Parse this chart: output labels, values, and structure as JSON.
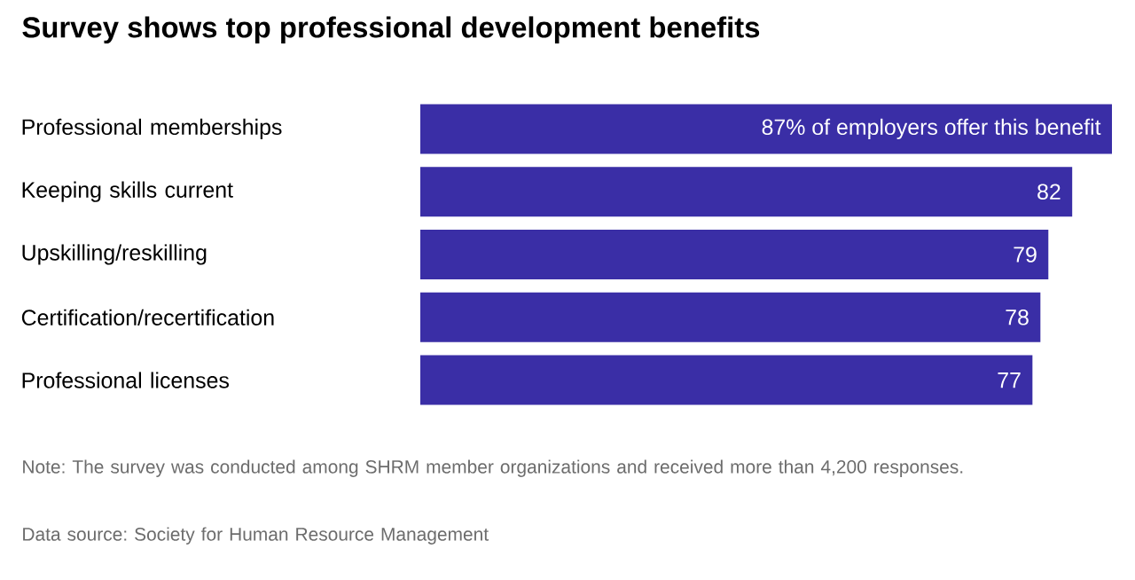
{
  "chart_data": {
    "type": "bar",
    "orientation": "horizontal",
    "title": "Survey shows top professional development benefits",
    "categories": [
      "Professional memberships",
      "Keeping skills current",
      "Upskilling/reskilling",
      "Certification/recertification",
      "Professional licenses"
    ],
    "values": [
      87,
      82,
      79,
      78,
      77
    ],
    "value_labels": [
      "87% of employers offer this benefit",
      "82",
      "79",
      "78",
      "77"
    ],
    "color": "#3a2ea6",
    "xlim": [
      0,
      87
    ],
    "tick_labels": "y",
    "annotations": [
      "Note: The survey was conducted among SHRM member organizations and received more than 4,200 responses.",
      "Data source: Society for Human Resource Management"
    ]
  }
}
